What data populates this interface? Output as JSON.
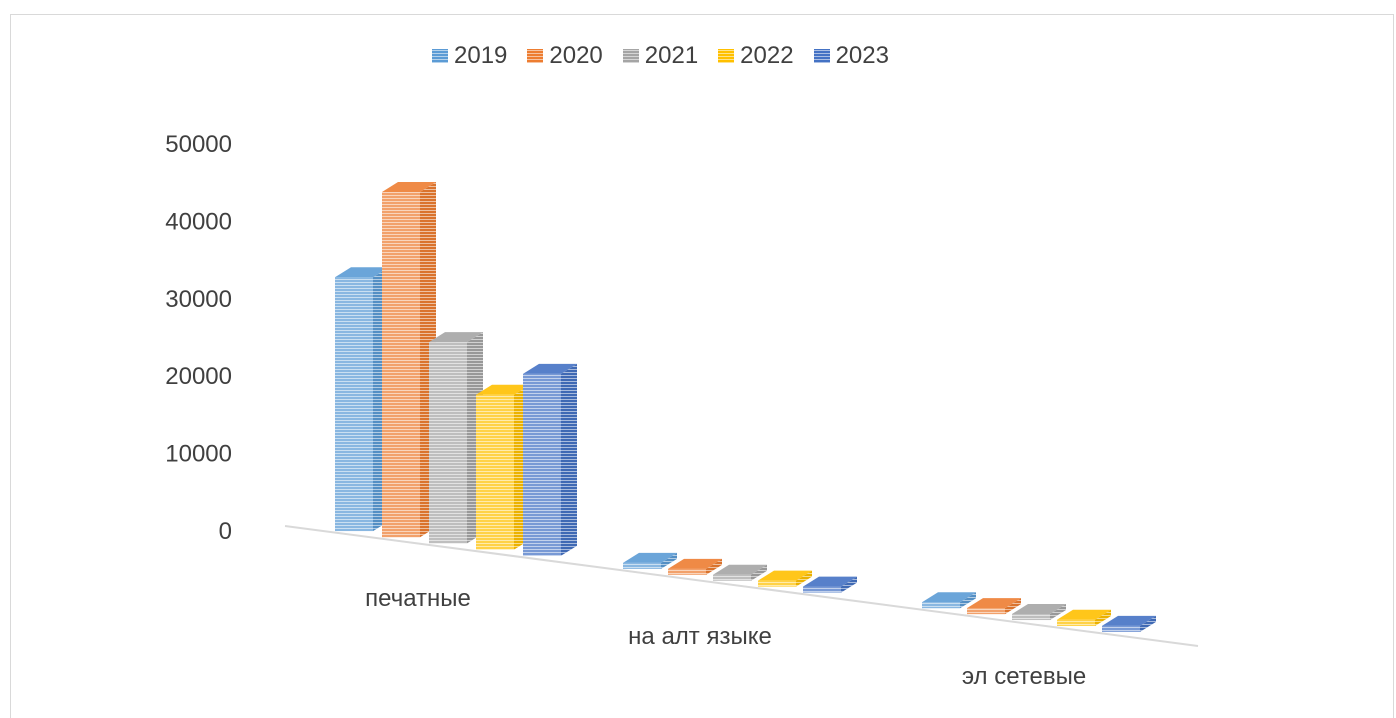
{
  "chart_data": {
    "type": "bar",
    "subtype": "3d-clustered-column",
    "title": "",
    "xlabel": "",
    "ylabel": "",
    "ylim": [
      0,
      50000
    ],
    "yticks": [
      "0",
      "10000",
      "20000",
      "30000",
      "40000",
      "50000"
    ],
    "grid": false,
    "legend_position": "top",
    "categories": [
      "печатные",
      "на алт языке",
      "эл сетевые"
    ],
    "series": [
      {
        "name": "2019",
        "color": "#5b9bd5",
        "values": [
          32800,
          500,
          400
        ]
      },
      {
        "name": "2020",
        "color": "#ed7d31",
        "values": [
          44600,
          600,
          300
        ]
      },
      {
        "name": "2021",
        "color": "#a5a5a5",
        "values": [
          26000,
          500,
          350
        ]
      },
      {
        "name": "2022",
        "color": "#ffc000",
        "values": [
          20000,
          600,
          800
        ]
      },
      {
        "name": "2023",
        "color": "#4472c4",
        "values": [
          23500,
          400,
          500
        ]
      }
    ]
  }
}
